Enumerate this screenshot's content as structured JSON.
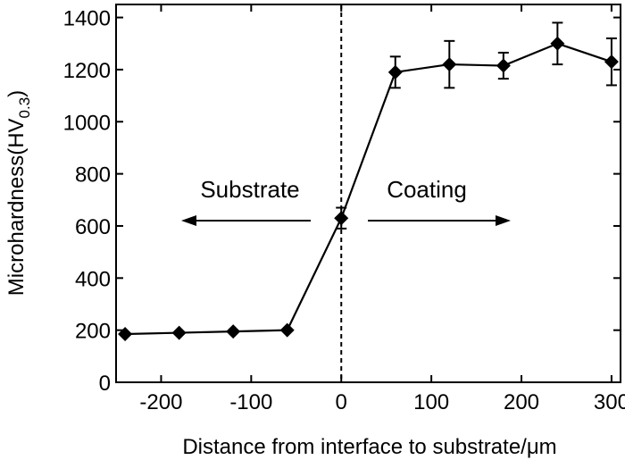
{
  "chart_data": {
    "type": "line",
    "title": "",
    "xlabel": "Distance from interface to substrate/μm",
    "ylabel_main": "Microhardness(HV",
    "ylabel_sub": "0.3",
    "ylabel_close": ")",
    "xlim": [
      -250,
      310
    ],
    "ylim": [
      0,
      1450
    ],
    "xticks": [
      -200,
      -100,
      0,
      100,
      200,
      300
    ],
    "xtick_labels": [
      "-200",
      "-100",
      "0",
      "100",
      "200",
      "300"
    ],
    "yticks": [
      0,
      200,
      400,
      600,
      800,
      1000,
      1200,
      1400
    ],
    "ytick_labels": [
      "0",
      "200",
      "400",
      "600",
      "800",
      "1000",
      "1200",
      "1400"
    ],
    "grid": false,
    "series": [
      {
        "name": "Microhardness",
        "marker": "diamond",
        "color": "#000000",
        "x": [
          -240,
          -180,
          -120,
          -60,
          0,
          60,
          120,
          180,
          240,
          300
        ],
        "y": [
          185,
          190,
          195,
          200,
          630,
          1190,
          1220,
          1215,
          1300,
          1230
        ],
        "error": [
          0,
          0,
          0,
          0,
          40,
          60,
          90,
          50,
          80,
          90
        ]
      }
    ],
    "annotations": [
      {
        "text": "Substrate",
        "arrow": "left"
      },
      {
        "text": "Coating",
        "arrow": "right"
      }
    ],
    "reference_line": {
      "x": 0,
      "style": "dashed"
    }
  }
}
